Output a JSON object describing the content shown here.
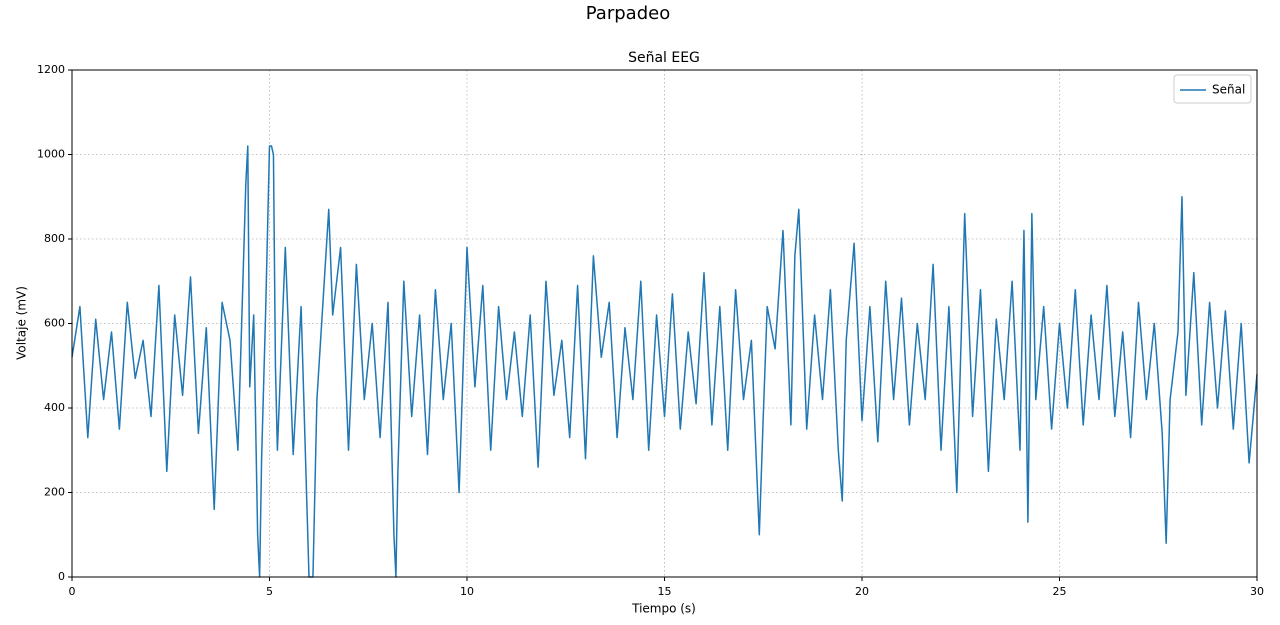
{
  "chart_data": {
    "type": "line",
    "suptitle": "Parpadeo",
    "title": "Señal EEG",
    "xlabel": "Tiempo (s)",
    "ylabel": "Voltaje (mV)",
    "xlim": [
      0,
      30
    ],
    "ylim": [
      0,
      1200
    ],
    "xticks": [
      0,
      5,
      10,
      15,
      20,
      25,
      30
    ],
    "yticks": [
      0,
      200,
      400,
      600,
      800,
      1000,
      1200
    ],
    "grid": true,
    "legend": "upper right",
    "x": [
      0,
      0.2,
      0.4,
      0.6,
      0.8,
      1.0,
      1.2,
      1.4,
      1.6,
      1.8,
      2.0,
      2.2,
      2.4,
      2.6,
      2.8,
      3.0,
      3.2,
      3.4,
      3.6,
      3.8,
      4.0,
      4.2,
      4.4,
      4.45,
      4.5,
      4.6,
      4.7,
      4.75,
      4.8,
      4.9,
      5.0,
      5.05,
      5.1,
      5.15,
      5.2,
      5.4,
      5.6,
      5.8,
      6.0,
      6.1,
      6.2,
      6.4,
      6.5,
      6.6,
      6.8,
      7.0,
      7.2,
      7.4,
      7.6,
      7.8,
      8.0,
      8.15,
      8.2,
      8.25,
      8.4,
      8.6,
      8.8,
      9.0,
      9.2,
      9.4,
      9.6,
      9.8,
      10.0,
      10.2,
      10.4,
      10.6,
      10.8,
      11.0,
      11.2,
      11.4,
      11.6,
      11.8,
      12.0,
      12.2,
      12.4,
      12.6,
      12.8,
      13.0,
      13.2,
      13.4,
      13.6,
      13.8,
      14.0,
      14.2,
      14.4,
      14.6,
      14.8,
      15.0,
      15.2,
      15.4,
      15.6,
      15.8,
      16.0,
      16.2,
      16.4,
      16.6,
      16.8,
      17.0,
      17.2,
      17.4,
      17.5,
      17.6,
      17.8,
      18.0,
      18.2,
      18.3,
      18.4,
      18.6,
      18.8,
      19.0,
      19.2,
      19.4,
      19.5,
      19.6,
      19.8,
      20.0,
      20.2,
      20.4,
      20.6,
      20.8,
      21.0,
      21.2,
      21.4,
      21.6,
      21.8,
      22.0,
      22.2,
      22.4,
      22.6,
      22.8,
      23.0,
      23.2,
      23.4,
      23.6,
      23.8,
      24.0,
      24.1,
      24.2,
      24.3,
      24.4,
      24.6,
      24.8,
      25.0,
      25.2,
      25.4,
      25.6,
      25.8,
      26.0,
      26.2,
      26.4,
      26.6,
      26.8,
      27.0,
      27.2,
      27.4,
      27.6,
      27.7,
      27.8,
      28.0,
      28.1,
      28.2,
      28.4,
      28.6,
      28.8,
      29.0,
      29.2,
      29.4,
      29.6,
      29.8,
      30.0
    ],
    "series": [
      {
        "name": "Señal",
        "color": "#1f77b4",
        "values": [
          520,
          640,
          330,
          610,
          420,
          580,
          350,
          650,
          470,
          560,
          380,
          690,
          250,
          620,
          430,
          710,
          340,
          590,
          160,
          650,
          560,
          300,
          930,
          1020,
          450,
          620,
          100,
          0,
          280,
          620,
          1020,
          1020,
          1000,
          500,
          300,
          780,
          290,
          640,
          0,
          0,
          420,
          720,
          870,
          620,
          780,
          300,
          740,
          420,
          600,
          330,
          650,
          100,
          0,
          250,
          700,
          380,
          620,
          290,
          680,
          420,
          600,
          200,
          780,
          450,
          690,
          300,
          640,
          420,
          580,
          380,
          620,
          260,
          700,
          430,
          560,
          330,
          690,
          280,
          760,
          520,
          650,
          330,
          590,
          420,
          700,
          300,
          620,
          380,
          670,
          350,
          580,
          410,
          720,
          360,
          640,
          300,
          680,
          420,
          560,
          100,
          380,
          640,
          540,
          820,
          360,
          760,
          870,
          350,
          620,
          420,
          680,
          300,
          180,
          560,
          790,
          370,
          640,
          320,
          700,
          420,
          660,
          360,
          600,
          420,
          740,
          300,
          640,
          200,
          860,
          380,
          680,
          250,
          610,
          420,
          700,
          300,
          820,
          130,
          860,
          420,
          640,
          350,
          600,
          400,
          680,
          360,
          620,
          420,
          690,
          380,
          580,
          330,
          650,
          420,
          600,
          340,
          80,
          420,
          580,
          900,
          430,
          720,
          360,
          650,
          400,
          630,
          350,
          600,
          270,
          480
        ]
      }
    ]
  }
}
